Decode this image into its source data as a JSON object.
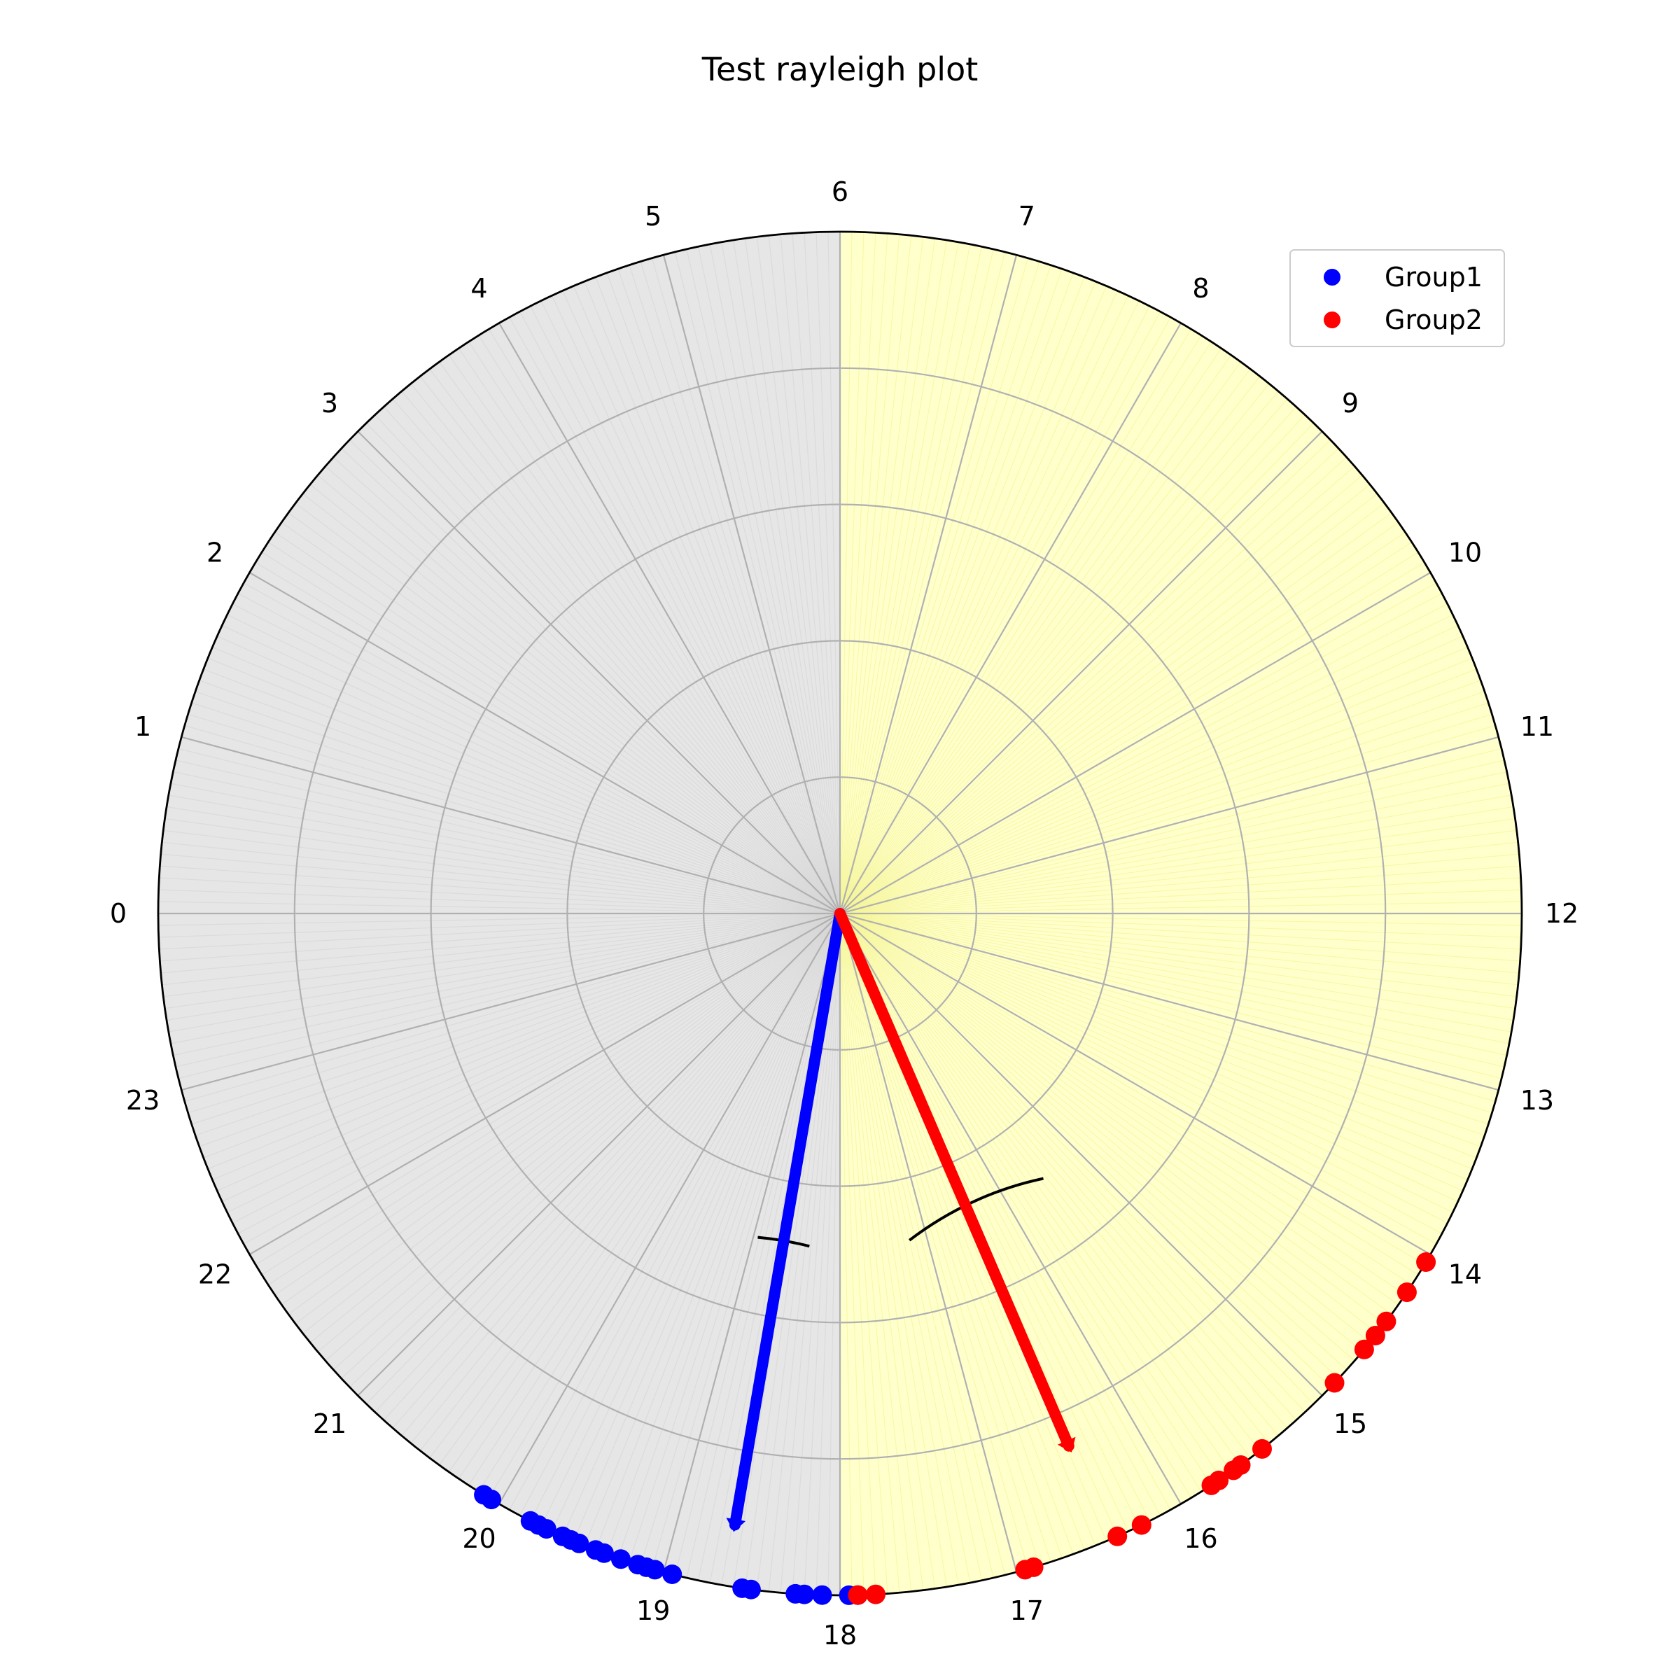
{
  "chart_data": {
    "type": "scatter",
    "subtype": "polar-rayleigh",
    "title": "Test rayleigh plot",
    "angular_ticks": [
      "0",
      "1",
      "2",
      "3",
      "4",
      "5",
      "6",
      "7",
      "8",
      "9",
      "10",
      "11",
      "12",
      "13",
      "14",
      "15",
      "16",
      "17",
      "18",
      "19",
      "20",
      "21",
      "22",
      "23"
    ],
    "angle_range": [
      0,
      24
    ],
    "radial_range": [
      0,
      1
    ],
    "radial_grid": [
      0.2,
      0.4,
      0.6,
      0.8,
      1.0
    ],
    "grid": true,
    "shading": {
      "dark": {
        "from": 18,
        "to": 30,
        "color": "#e6e6e6"
      },
      "light": {
        "from": 6,
        "to": 18,
        "color": "#ffffcc"
      }
    },
    "legend": {
      "placement": "top-right",
      "entries": [
        {
          "label": "Group1",
          "color": "#0000ff"
        },
        {
          "label": "Group2",
          "color": "#ff0000"
        }
      ]
    },
    "series": [
      {
        "name": "Group1",
        "color": "#0000ff",
        "points_hours": [
          17.9,
          17.95,
          18.1,
          18.2,
          18.25,
          18.5,
          18.55,
          18.95,
          19.05,
          19.1,
          19.15,
          19.25,
          19.35,
          19.4,
          19.5,
          19.55,
          19.6,
          19.7,
          19.75,
          19.8,
          20.05,
          20.1
        ],
        "r": 1.0,
        "mean_vector": {
          "angle_hours": 18.65,
          "length": 0.91,
          "ci_hours": [
            18.35,
            18.95
          ],
          "ci_radius": 0.49
        }
      },
      {
        "name": "Group2",
        "color": "#ff0000",
        "points_hours": [
          14.05,
          14.25,
          14.45,
          14.55,
          14.65,
          14.9,
          15.45,
          15.6,
          15.65,
          15.75,
          15.8,
          16.25,
          16.4,
          16.9,
          16.95,
          17.8,
          17.9
        ],
        "r": 1.0,
        "mean_vector": {
          "angle_hours": 16.45,
          "length": 0.85,
          "ci_hours": [
            15.5,
            17.2
          ],
          "ci_radius": 0.49
        }
      }
    ]
  }
}
